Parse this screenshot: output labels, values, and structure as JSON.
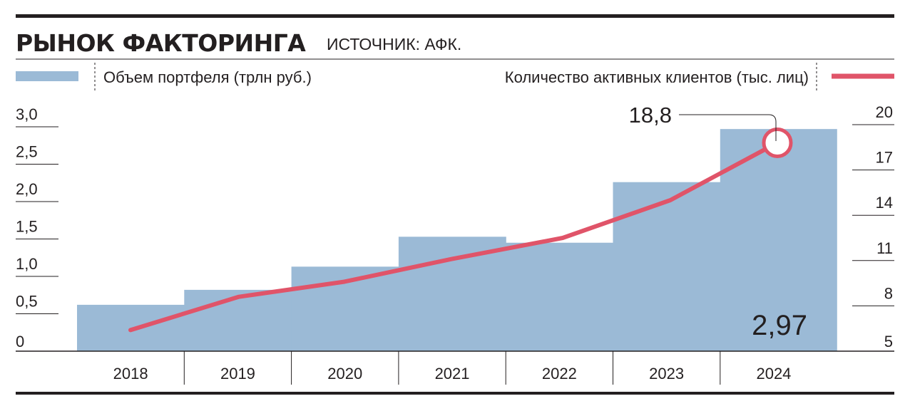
{
  "header": {
    "title": "РЫНОК ФАКТОРИНГА",
    "source": "ИСТОЧНИК: АФК."
  },
  "legend": {
    "bars_label": "Объем портфеля (трлн руб.)",
    "line_label": "Количество активных клиентов (тыс. лиц)"
  },
  "colors": {
    "bar": "#9bbad6",
    "line": "#e05469",
    "text": "#231f20"
  },
  "chart_data": {
    "type": "bar+line",
    "categories": [
      "2018",
      "2019",
      "2020",
      "2021",
      "2022",
      "2023",
      "2024"
    ],
    "series": [
      {
        "name": "Объем портфеля (трлн руб.)",
        "type": "bar",
        "axis": "left",
        "values": [
          0.62,
          0.82,
          1.13,
          1.53,
          1.45,
          2.26,
          2.97
        ]
      },
      {
        "name": "Количество активных клиентов (тыс. лиц)",
        "type": "line",
        "axis": "right",
        "values": [
          6.4,
          8.6,
          9.6,
          11.1,
          12.5,
          15.0,
          18.8
        ]
      }
    ],
    "left_axis": {
      "ylim": [
        0,
        3.0
      ],
      "ticks": [
        0,
        0.5,
        1.0,
        1.5,
        2.0,
        2.5,
        3.0
      ],
      "tick_labels": [
        "0",
        "0,5",
        "1,0",
        "1,5",
        "2,0",
        "2,5",
        "3,0"
      ]
    },
    "right_axis": {
      "ylim": [
        5,
        20
      ],
      "ticks": [
        5,
        8,
        11,
        14,
        17,
        20
      ],
      "tick_labels": [
        "5",
        "8",
        "11",
        "14",
        "17",
        "20"
      ]
    },
    "annotations": {
      "last_bar_label": "2,97",
      "last_point_label": "18,8"
    },
    "grid": false,
    "legend_position": "top"
  }
}
